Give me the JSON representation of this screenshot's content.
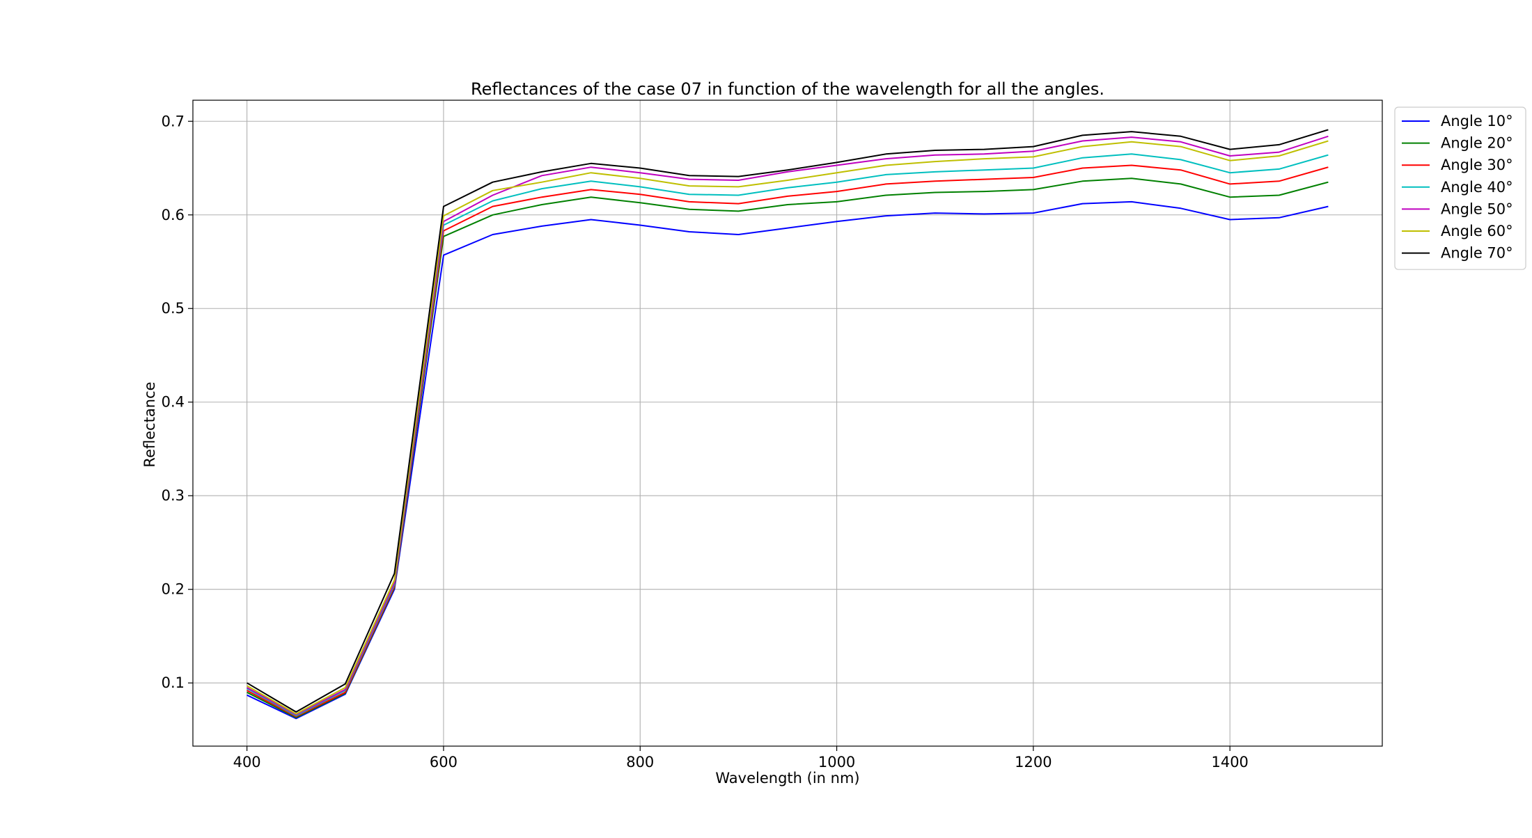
{
  "chart_data": {
    "type": "line",
    "title": "Reflectances of the case 07 in function of the wavelength for all the angles.",
    "xlabel": "Wavelength (in nm)",
    "ylabel": "Reflectance",
    "xlim": [
      345,
      1555
    ],
    "ylim": [
      0.0325,
      0.7225
    ],
    "x_ticks": [
      400,
      600,
      800,
      1000,
      1200,
      1400
    ],
    "x_tick_labels": [
      "400",
      "600",
      "800",
      "1000",
      "1200",
      "1400"
    ],
    "y_ticks": [
      0.1,
      0.2,
      0.3,
      0.4,
      0.5,
      0.6,
      0.7
    ],
    "y_tick_labels": [
      "0.1",
      "0.2",
      "0.3",
      "0.4",
      "0.5",
      "0.6",
      "0.7"
    ],
    "grid": true,
    "legend_position": "outside-top-right",
    "x": [
      400,
      450,
      500,
      550,
      600,
      650,
      700,
      750,
      800,
      850,
      900,
      950,
      1000,
      1050,
      1100,
      1150,
      1200,
      1250,
      1300,
      1350,
      1400,
      1450,
      1500
    ],
    "series": [
      {
        "name": "Angle 10°",
        "color": "#0000ff",
        "values": [
          0.087,
          0.062,
          0.088,
          0.2,
          0.557,
          0.579,
          0.588,
          0.595,
          0.589,
          0.582,
          0.579,
          0.586,
          0.593,
          0.599,
          0.602,
          0.601,
          0.602,
          0.612,
          0.614,
          0.607,
          0.595,
          0.597,
          0.609
        ]
      },
      {
        "name": "Angle 20°",
        "color": "#008000",
        "values": [
          0.09,
          0.063,
          0.089,
          0.202,
          0.577,
          0.6,
          0.611,
          0.619,
          0.613,
          0.606,
          0.604,
          0.611,
          0.614,
          0.621,
          0.624,
          0.625,
          0.627,
          0.636,
          0.639,
          0.633,
          0.619,
          0.621,
          0.635
        ]
      },
      {
        "name": "Angle 30°",
        "color": "#ff0000",
        "values": [
          0.092,
          0.064,
          0.09,
          0.203,
          0.583,
          0.609,
          0.619,
          0.627,
          0.622,
          0.614,
          0.612,
          0.62,
          0.625,
          0.633,
          0.636,
          0.638,
          0.64,
          0.65,
          0.653,
          0.648,
          0.633,
          0.636,
          0.651
        ]
      },
      {
        "name": "Angle 40°",
        "color": "#00bfbf",
        "values": [
          0.094,
          0.065,
          0.092,
          0.205,
          0.589,
          0.615,
          0.628,
          0.636,
          0.63,
          0.622,
          0.621,
          0.629,
          0.635,
          0.643,
          0.646,
          0.648,
          0.65,
          0.661,
          0.665,
          0.659,
          0.645,
          0.649,
          0.664
        ]
      },
      {
        "name": "Angle 50°",
        "color": "#bf00bf",
        "values": [
          0.095,
          0.066,
          0.093,
          0.207,
          0.593,
          0.621,
          0.642,
          0.651,
          0.645,
          0.638,
          0.637,
          0.646,
          0.653,
          0.66,
          0.664,
          0.665,
          0.668,
          0.679,
          0.683,
          0.678,
          0.663,
          0.667,
          0.684
        ]
      },
      {
        "name": "Angle 60°",
        "color": "#bfbf00",
        "values": [
          0.097,
          0.067,
          0.095,
          0.21,
          0.599,
          0.626,
          0.635,
          0.645,
          0.639,
          0.631,
          0.63,
          0.637,
          0.645,
          0.653,
          0.657,
          0.66,
          0.662,
          0.673,
          0.678,
          0.673,
          0.658,
          0.663,
          0.679
        ]
      },
      {
        "name": "Angle 70°",
        "color": "#000000",
        "values": [
          0.1,
          0.069,
          0.099,
          0.217,
          0.609,
          0.635,
          0.646,
          0.655,
          0.65,
          0.642,
          0.641,
          0.648,
          0.656,
          0.665,
          0.669,
          0.67,
          0.673,
          0.685,
          0.689,
          0.684,
          0.67,
          0.675,
          0.691
        ]
      }
    ]
  }
}
